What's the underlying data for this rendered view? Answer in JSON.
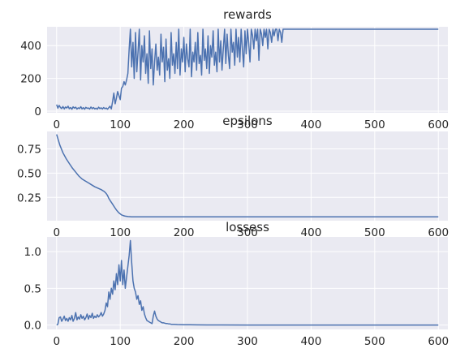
{
  "colors": {
    "axes_bg": "#eaeaf2",
    "grid": "#ffffff",
    "line": "#4c72b0",
    "text": "#262626"
  },
  "chart_data": [
    {
      "type": "line",
      "title": "rewards",
      "xlim": [
        -15,
        615
      ],
      "ylim": [
        -10,
        515
      ],
      "x_ticks": [
        0,
        100,
        200,
        300,
        400,
        500,
        600
      ],
      "y_ticks": [
        0,
        200,
        400
      ],
      "y_tick_labels": [
        "0",
        "200",
        "400"
      ],
      "grid": true,
      "series": [
        {
          "x": [
            0,
            2,
            4,
            6,
            8,
            10,
            12,
            14,
            16,
            18,
            20,
            22,
            24,
            26,
            28,
            30,
            32,
            34,
            36,
            38,
            40,
            42,
            44,
            46,
            48,
            50,
            52,
            54,
            56,
            58,
            60,
            62,
            64,
            66,
            68,
            70,
            72,
            74,
            76,
            78,
            80,
            82,
            84,
            86,
            88,
            90,
            92,
            94,
            96,
            98,
            100,
            102,
            104,
            106,
            108,
            110,
            112,
            114,
            116,
            118,
            120,
            122,
            124,
            126,
            128,
            130,
            132,
            134,
            136,
            138,
            140,
            142,
            144,
            146,
            148,
            150,
            152,
            154,
            156,
            158,
            160,
            162,
            164,
            166,
            168,
            170,
            172,
            174,
            176,
            178,
            180,
            182,
            184,
            186,
            188,
            190,
            192,
            194,
            196,
            198,
            200,
            202,
            204,
            206,
            208,
            210,
            212,
            214,
            216,
            218,
            220,
            222,
            224,
            226,
            228,
            230,
            232,
            234,
            236,
            238,
            240,
            242,
            244,
            246,
            248,
            250,
            252,
            254,
            256,
            258,
            260,
            262,
            264,
            266,
            268,
            270,
            272,
            274,
            276,
            278,
            280,
            282,
            284,
            286,
            288,
            290,
            292,
            294,
            296,
            298,
            300,
            302,
            304,
            306,
            308,
            310,
            312,
            314,
            316,
            318,
            320,
            322,
            324,
            326,
            328,
            330,
            332,
            334,
            336,
            338,
            340,
            342,
            344,
            346,
            348,
            350,
            352,
            354,
            356,
            600
          ],
          "y": [
            40,
            18,
            35,
            22,
            16,
            28,
            14,
            25,
            19,
            30,
            15,
            22,
            12,
            26,
            18,
            24,
            13,
            20,
            16,
            27,
            14,
            21,
            12,
            23,
            17,
            19,
            13,
            25,
            15,
            22,
            14,
            18,
            12,
            24,
            16,
            20,
            13,
            22,
            15,
            19,
            12,
            21,
            30,
            14,
            60,
            110,
            45,
            80,
            120,
            95,
            70,
            140,
            150,
            180,
            160,
            190,
            230,
            380,
            500,
            270,
            420,
            200,
            480,
            240,
            360,
            500,
            190,
            400,
            300,
            460,
            230,
            350,
            170,
            490,
            260,
            380,
            160,
            300,
            410,
            250,
            330,
            220,
            470,
            300,
            390,
            180,
            440,
            250,
            320,
            200,
            480,
            280,
            350,
            230,
            420,
            260,
            500,
            220,
            380,
            300,
            450,
            240,
            410,
            320,
            270,
            500,
            210,
            360,
            300,
            420,
            250,
            480,
            290,
            340,
            220,
            500,
            310,
            380,
            260,
            460,
            230,
            400,
            330,
            490,
            280,
            360,
            240,
            500,
            300,
            430,
            250,
            380,
            500,
            290,
            470,
            340,
            260,
            500,
            360,
            420,
            280,
            500,
            330,
            450,
            300,
            500,
            380,
            270,
            490,
            350,
            500,
            410,
            300,
            500,
            460,
            380,
            500,
            430,
            500,
            310,
            500,
            470,
            400,
            500,
            450,
            500,
            380,
            500,
            480,
            420,
            500,
            460,
            500,
            500,
            430,
            500,
            480,
            420,
            500,
            500
          ]
        }
      ]
    },
    {
      "type": "line",
      "title": "epsilons",
      "xlim": [
        -15,
        615
      ],
      "ylim": [
        0.01,
        0.93
      ],
      "x_ticks": [
        0,
        100,
        200,
        300,
        400,
        500,
        600
      ],
      "y_ticks": [
        0.25,
        0.5,
        0.75
      ],
      "y_tick_labels": [
        "0.25",
        "0.50",
        "0.75"
      ],
      "grid": true,
      "series": [
        {
          "x": [
            0,
            5,
            10,
            15,
            20,
            25,
            30,
            35,
            40,
            45,
            50,
            55,
            60,
            65,
            70,
            75,
            78,
            80,
            82,
            84,
            86,
            88,
            90,
            92,
            94,
            96,
            98,
            100,
            102,
            104,
            106,
            108,
            110,
            112,
            114,
            116,
            118,
            120,
            125,
            130,
            140,
            150,
            200,
            300,
            400,
            500,
            600
          ],
          "y": [
            0.9,
            0.79,
            0.71,
            0.65,
            0.6,
            0.55,
            0.51,
            0.47,
            0.44,
            0.42,
            0.4,
            0.38,
            0.36,
            0.345,
            0.33,
            0.31,
            0.29,
            0.27,
            0.24,
            0.22,
            0.2,
            0.18,
            0.16,
            0.14,
            0.12,
            0.105,
            0.09,
            0.08,
            0.07,
            0.065,
            0.06,
            0.057,
            0.055,
            0.053,
            0.052,
            0.051,
            0.05,
            0.05,
            0.05,
            0.05,
            0.05,
            0.05,
            0.05,
            0.05,
            0.05,
            0.05,
            0.05
          ]
        }
      ]
    },
    {
      "type": "line",
      "title": "lossess",
      "xlim": [
        -15,
        615
      ],
      "ylim": [
        -0.06,
        1.2
      ],
      "x_ticks": [
        0,
        100,
        200,
        300,
        400,
        500,
        600
      ],
      "y_ticks": [
        0,
        0.5,
        1
      ],
      "y_tick_labels": [
        "0.0",
        "0.5",
        "1.0"
      ],
      "grid": true,
      "series": [
        {
          "x": [
            0,
            2,
            4,
            6,
            8,
            10,
            12,
            14,
            16,
            18,
            20,
            22,
            24,
            26,
            28,
            30,
            32,
            34,
            36,
            38,
            40,
            42,
            44,
            46,
            48,
            50,
            52,
            54,
            56,
            58,
            60,
            62,
            64,
            66,
            68,
            70,
            72,
            74,
            76,
            78,
            80,
            82,
            84,
            86,
            88,
            90,
            92,
            94,
            96,
            98,
            100,
            102,
            104,
            106,
            108,
            110,
            112,
            114,
            116,
            118,
            120,
            122,
            124,
            126,
            128,
            130,
            132,
            134,
            136,
            138,
            140,
            142,
            144,
            146,
            148,
            150,
            152,
            154,
            156,
            158,
            160,
            162,
            164,
            166,
            168,
            170,
            172,
            174,
            176,
            178,
            180,
            185,
            190,
            195,
            200,
            210,
            220,
            240,
            260,
            300,
            350,
            400,
            450,
            500,
            550,
            600
          ],
          "y": [
            0.0,
            0.01,
            0.1,
            0.11,
            0.05,
            0.08,
            0.12,
            0.06,
            0.09,
            0.05,
            0.1,
            0.07,
            0.13,
            0.05,
            0.09,
            0.17,
            0.07,
            0.11,
            0.08,
            0.14,
            0.09,
            0.12,
            0.07,
            0.1,
            0.15,
            0.08,
            0.13,
            0.1,
            0.16,
            0.09,
            0.12,
            0.1,
            0.14,
            0.11,
            0.13,
            0.17,
            0.12,
            0.15,
            0.2,
            0.3,
            0.25,
            0.45,
            0.35,
            0.5,
            0.42,
            0.6,
            0.48,
            0.7,
            0.55,
            0.82,
            0.6,
            0.88,
            0.55,
            0.75,
            0.5,
            0.65,
            0.8,
            0.95,
            1.15,
            0.85,
            0.6,
            0.5,
            0.45,
            0.35,
            0.4,
            0.28,
            0.33,
            0.2,
            0.25,
            0.15,
            0.1,
            0.06,
            0.05,
            0.04,
            0.03,
            0.02,
            0.12,
            0.19,
            0.12,
            0.08,
            0.06,
            0.05,
            0.04,
            0.03,
            0.03,
            0.025,
            0.02,
            0.02,
            0.015,
            0.015,
            0.01,
            0.008,
            0.006,
            0.005,
            0.004,
            0.003,
            0.002,
            0.001,
            0.001,
            0.0,
            0.0,
            0.0,
            0.0,
            0.0,
            0.0,
            0.0
          ]
        }
      ]
    }
  ]
}
